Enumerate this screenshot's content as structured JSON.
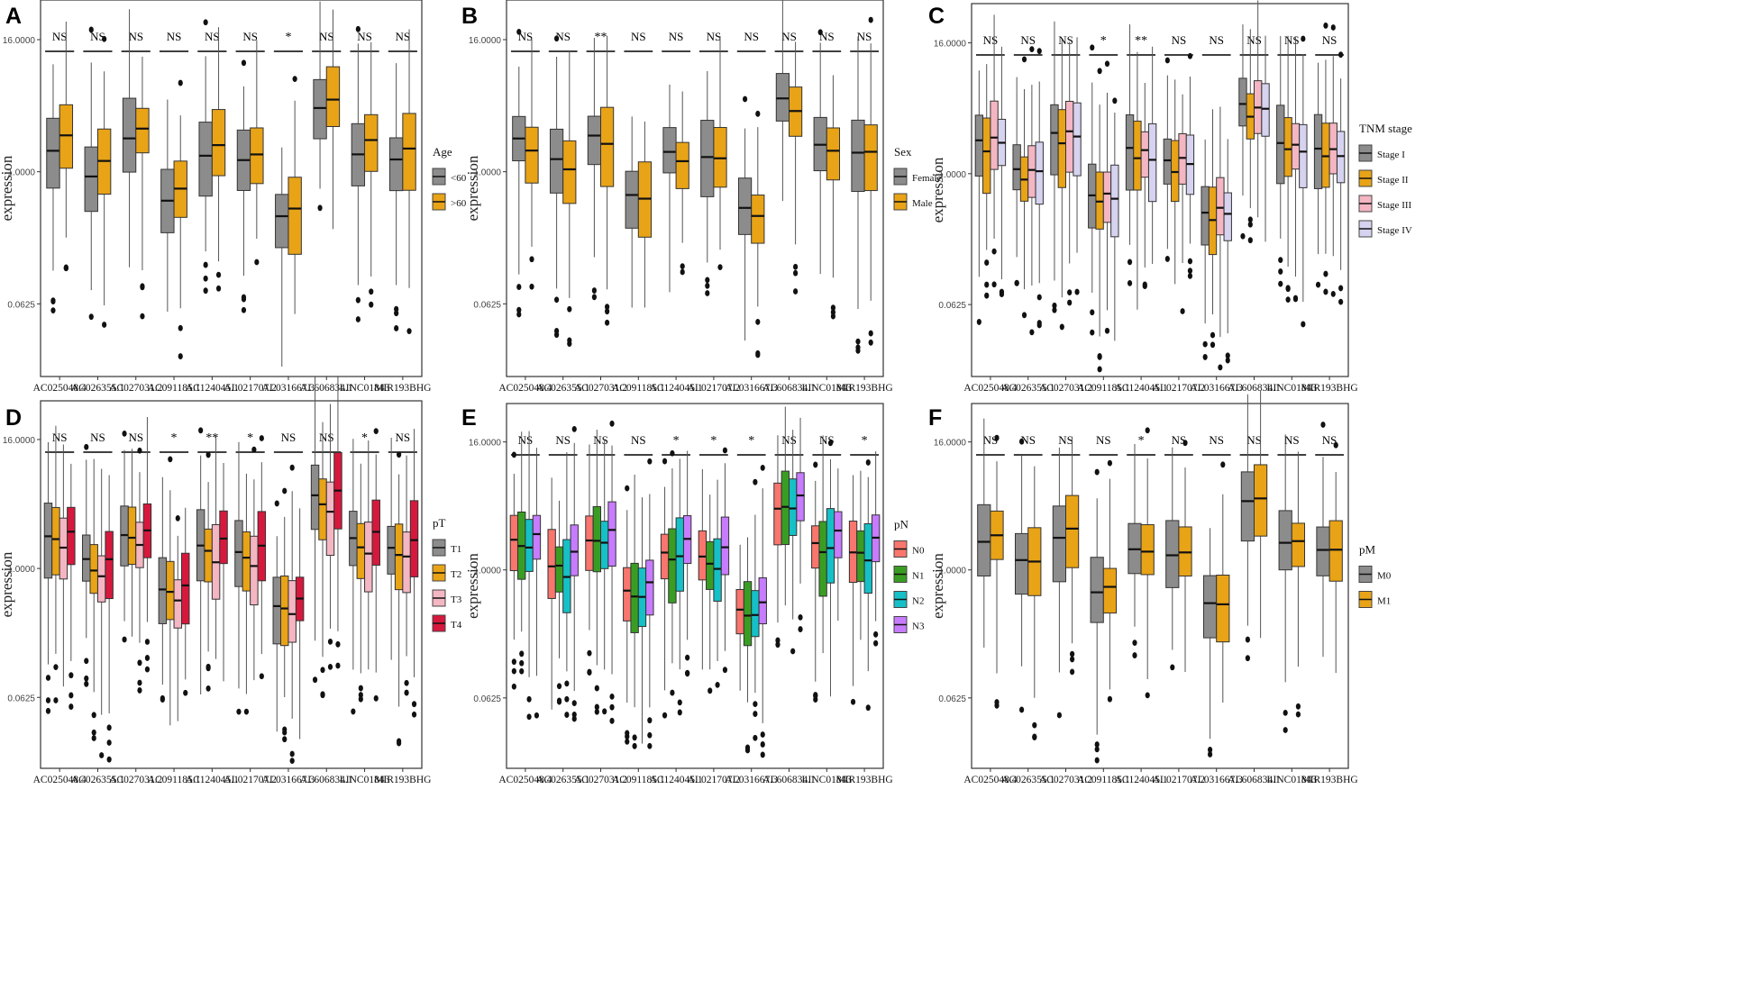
{
  "shared": {
    "genes": [
      "AC025048.4",
      "AC026355.1",
      "AC027031.2",
      "AC091185.1",
      "AC124045.1",
      "AL021707.2",
      "AL031667.3",
      "AL606834.1",
      "LINC01843",
      "MIR193BHG"
    ],
    "y_label": "expression",
    "y_ticks": [
      "16.0000",
      "1.0000",
      "0.0625"
    ],
    "gene_centers": [
      0.88,
      0.15,
      1.05,
      -0.68,
      0.55,
      0.38,
      -1.2,
      2.05,
      0.8,
      0.62
    ]
  },
  "chart_data": [
    {
      "type": "boxplot",
      "panel": "A",
      "title": "A",
      "legend": {
        "title": "Age",
        "entries": [
          "<60",
          ">60"
        ]
      },
      "colors": [
        "#8c8c8c",
        "#e8a317"
      ],
      "group_offsets": [
        -0.15,
        0.15
      ],
      "significance": [
        "NS",
        "NS",
        "NS",
        "NS",
        "NS",
        "NS",
        "*",
        "NS",
        "NS",
        "NS"
      ],
      "y_scale": "log2",
      "ylim": [
        -6.2,
        5.2
      ]
    },
    {
      "type": "boxplot",
      "panel": "B",
      "title": "B",
      "legend": {
        "title": "Sex",
        "entries": [
          "Female",
          "Male"
        ]
      },
      "colors": [
        "#8c8c8c",
        "#e8a317"
      ],
      "group_offsets": [
        0.1,
        -0.1
      ],
      "significance": [
        "NS",
        "NS",
        "**",
        "NS",
        "NS",
        "NS",
        "NS",
        "NS",
        "NS",
        "NS"
      ],
      "y_scale": "log2",
      "ylim": [
        -6.2,
        5.2
      ]
    },
    {
      "type": "boxplot",
      "panel": "C",
      "title": "C",
      "legend": {
        "title": "TNM stage",
        "entries": [
          "Stage I",
          "Stage II",
          "Stage III",
          "Stage IV"
        ]
      },
      "colors": [
        "#8c8c8c",
        "#e8a317",
        "#f4b6c2",
        "#d6d3f0"
      ],
      "group_offsets": [
        0.1,
        -0.2,
        0.1,
        0.0
      ],
      "significance": [
        "NS",
        "NS",
        "NS",
        "*",
        "**",
        "NS",
        "NS",
        "NS",
        "NS",
        "NS"
      ],
      "y_scale": "log2",
      "ylim": [
        -6.2,
        5.2
      ]
    },
    {
      "type": "boxplot",
      "panel": "D",
      "title": "D",
      "legend": {
        "title": "pT",
        "entries": [
          "T1",
          "T2",
          "T3",
          "T4"
        ]
      },
      "colors": [
        "#8c8c8c",
        "#e8a317",
        "#f4b6c2",
        "#d6183d"
      ],
      "group_offsets": [
        0.1,
        -0.1,
        -0.3,
        0.25
      ],
      "significance": [
        "NS",
        "NS",
        "NS",
        "*",
        "**",
        "*",
        "NS",
        "NS",
        "*",
        "NS"
      ],
      "y_scale": "log2",
      "ylim": [
        -6.2,
        5.2
      ]
    },
    {
      "type": "boxplot",
      "panel": "E",
      "title": "E",
      "legend": {
        "title": "pN",
        "entries": [
          "N0",
          "N1",
          "N2",
          "N3"
        ]
      },
      "colors": [
        "#f8766d",
        "#3a9d23",
        "#16c0c7",
        "#c77cff"
      ],
      "group_offsets": [
        0.0,
        -0.1,
        -0.25,
        0.3
      ],
      "significance": [
        "NS",
        "NS",
        "NS",
        "NS",
        "*",
        "*",
        "*",
        "NS",
        "NS",
        "*"
      ],
      "y_scale": "log2",
      "ylim": [
        -6.2,
        5.2
      ]
    },
    {
      "type": "boxplot",
      "panel": "F",
      "title": "F",
      "legend": {
        "title": "pM",
        "entries": [
          "M0",
          "M1"
        ]
      },
      "colors": [
        "#8c8c8c",
        "#e8a317"
      ],
      "group_offsets": [
        0.05,
        0.1
      ],
      "significance": [
        "NS",
        "NS",
        "NS",
        "NS",
        "*",
        "NS",
        "NS",
        "NS",
        "NS",
        "NS"
      ],
      "y_scale": "log2",
      "ylim": [
        -6.2,
        5.2
      ]
    }
  ]
}
